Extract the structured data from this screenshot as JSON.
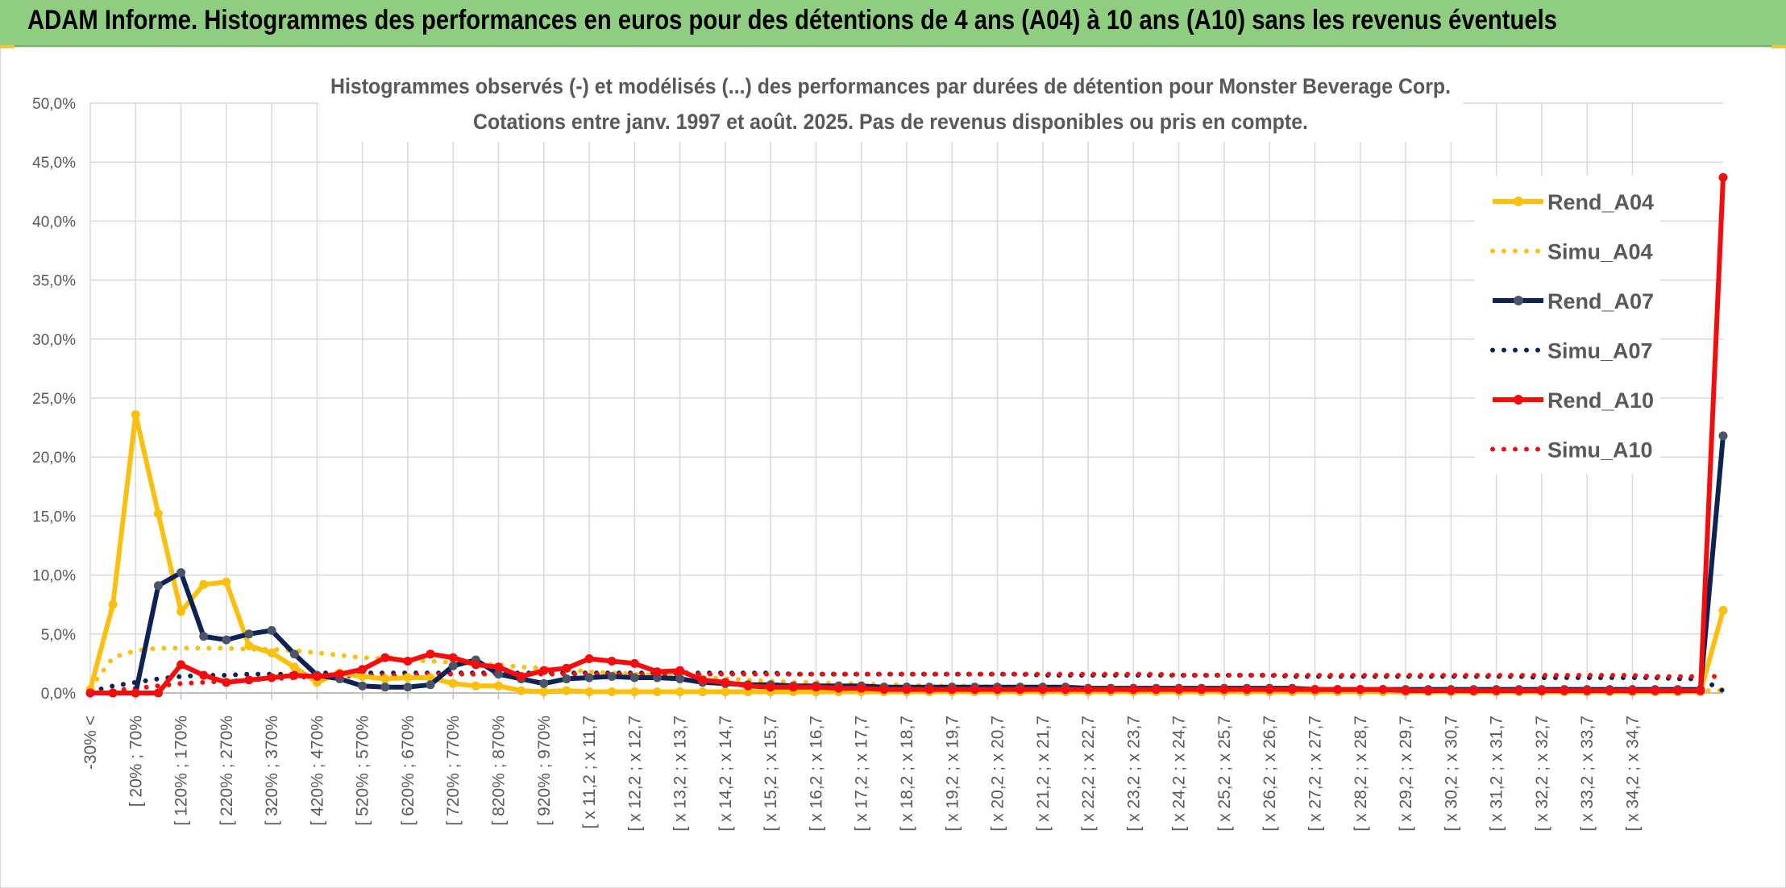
{
  "banner": {
    "title": "ADAM Informe. Histogrammes des performances en euros pour des détentions de 4 ans (A04) à 10 ans (A10) sans les revenus éventuels"
  },
  "colors": {
    "banner_bg": "#8fce80",
    "a04": "#fbbf0e",
    "a07": "#0e2354",
    "a07_marker": "#4a5568",
    "a10": "#f50c0c",
    "grid": "#d9d9d9",
    "axis_text": "#595959"
  },
  "chart_data": {
    "type": "line",
    "title": "Histogrammes observés (-) et modélisés (...) des performances par durées de détention pour Monster Beverage Corp.",
    "subtitle": "Cotations entre janv. 1997 et août. 2025. Pas de revenus disponibles ou pris en compte.",
    "xlabel": "",
    "ylabel": "",
    "ylim": [
      0,
      50
    ],
    "y_tick_labels": [
      "0,0%",
      "5,0%",
      "10,0%",
      "15,0%",
      "20,0%",
      "25,0%",
      "30,0%",
      "35,0%",
      "40,0%",
      "45,0%",
      "50,0%"
    ],
    "grid": true,
    "legend_position": "right",
    "x_tick_labels": [
      "-30% <",
      "[ 20% ; 70%",
      "[ 120% ; 170%",
      "[ 220% ; 270%",
      "[ 320% ; 370%",
      "[ 420% ; 470%",
      "[ 520% ; 570%",
      "[ 620% ; 670%",
      "[ 720% ; 770%",
      "[ 820% ; 870%",
      "[ 920% ; 970%",
      "[ x 11,2 ; x 11,7",
      "[ x 12,2 ; x 12,7",
      "[ x 13,2 ; x 13,7",
      "[ x 14,2 ; x 14,7",
      "[ x 15,2 ; x 15,7",
      "[ x 16,2 ; x 16,7",
      "[ x 17,2 ; x 17,7",
      "[ x 18,2 ; x 18,7",
      "[ x 19,2 ; x 19,7",
      "[ x 20,2 ; x 20,7",
      "[ x 21,2 ; x 21,7",
      "[ x 22,2 ; x 22,7",
      "[ x 23,2 ; x 23,7",
      "[ x 24,2 ; x 24,7",
      "[ x 25,2 ; x 25,7",
      "[ x 26,2 ; x 26,7",
      "[ x 27,2 ; x 27,7",
      "[ x 28,2 ; x 28,7",
      "[ x 29,2 ; x 29,7",
      "[ x 30,2 ; x 30,7",
      "[ x 31,2 ; x 31,7",
      "[ x 32,2 ; x 32,7",
      "[ x 33,2 ; x 33,7",
      "[ x 34,2 ; x 34,7"
    ],
    "series": [
      {
        "name": "Rend_A04",
        "style": "solid",
        "color": "#fbbf0e",
        "marker": "#fbbf0e",
        "values": [
          0.3,
          7.5,
          23.6,
          15.2,
          6.9,
          9.2,
          9.4,
          4.0,
          3.4,
          2.2,
          0.9,
          1.7,
          1.4,
          1.2,
          1.3,
          1.3,
          0.8,
          0.6,
          0.6,
          0.2,
          0.1,
          0.2,
          0.1,
          0.1,
          0.1,
          0.1,
          0.1,
          0.1,
          0.1,
          0.1,
          0.1,
          0.1,
          0.1,
          0.1,
          0.1,
          0.1,
          0.1,
          0.1,
          0.1,
          0.1,
          0.1,
          0.1,
          0.1,
          0.1,
          0.1,
          0.1,
          0.1,
          0.1,
          0.1,
          0.1,
          0.1,
          0.1,
          0.1,
          0.1,
          0.1,
          0.1,
          0.1,
          0.1,
          0.1,
          0.1,
          0.1,
          0.1,
          0.1,
          0.1,
          0.1,
          0.1,
          0.1,
          0.1,
          0.1,
          0.1,
          0.1,
          0.1,
          7.0
        ]
      },
      {
        "name": "Simu_A04",
        "style": "dotted",
        "color": "#fbbf0e",
        "values": [
          0.4,
          3.0,
          3.6,
          3.8,
          3.8,
          3.8,
          3.8,
          3.7,
          3.7,
          3.6,
          3.4,
          3.2,
          3.0,
          2.9,
          2.8,
          2.7,
          2.6,
          2.5,
          2.4,
          2.2,
          2.1,
          2.0,
          1.8,
          1.7,
          1.6,
          1.5,
          1.4,
          1.3,
          1.2,
          1.1,
          1.0,
          0.9,
          0.9,
          0.8,
          0.8,
          0.7,
          0.7,
          0.6,
          0.6,
          0.6,
          0.5,
          0.5,
          0.5,
          0.5,
          0.4,
          0.4,
          0.4,
          0.4,
          0.4,
          0.3,
          0.3,
          0.3,
          0.3,
          0.3,
          0.3,
          0.3,
          0.3,
          0.3,
          0.2,
          0.2,
          0.2,
          0.2,
          0.2,
          0.2,
          0.2,
          0.2,
          0.2,
          0.2,
          0.2,
          0.2,
          0.2,
          0.2,
          0.2
        ]
      },
      {
        "name": "Rend_A07",
        "style": "solid",
        "color": "#0e2354",
        "marker": "#4a5568",
        "values": [
          0.0,
          0.0,
          0.0,
          9.1,
          10.2,
          4.8,
          4.5,
          5.0,
          5.3,
          3.3,
          1.5,
          1.2,
          0.6,
          0.5,
          0.5,
          0.7,
          2.3,
          2.8,
          1.6,
          1.2,
          0.8,
          1.2,
          1.3,
          1.4,
          1.3,
          1.3,
          1.2,
          0.9,
          0.8,
          0.7,
          0.7,
          0.6,
          0.6,
          0.6,
          0.6,
          0.5,
          0.5,
          0.5,
          0.5,
          0.5,
          0.5,
          0.5,
          0.5,
          0.5,
          0.4,
          0.4,
          0.4,
          0.4,
          0.4,
          0.4,
          0.4,
          0.4,
          0.4,
          0.4,
          0.3,
          0.3,
          0.3,
          0.3,
          0.3,
          0.3,
          0.3,
          0.3,
          0.3,
          0.3,
          0.3,
          0.3,
          0.3,
          0.3,
          0.3,
          0.3,
          0.3,
          0.3,
          21.8
        ]
      },
      {
        "name": "Simu_A07",
        "style": "dotted",
        "color": "#0e2354",
        "values": [
          0.1,
          0.6,
          0.9,
          1.2,
          1.4,
          1.5,
          1.5,
          1.6,
          1.6,
          1.6,
          1.7,
          1.7,
          1.7,
          1.7,
          1.7,
          1.7,
          1.7,
          1.7,
          1.7,
          1.7,
          1.7,
          1.7,
          1.7,
          1.7,
          1.7,
          1.7,
          1.7,
          1.7,
          1.7,
          1.7,
          1.7,
          1.6,
          1.6,
          1.6,
          1.6,
          1.6,
          1.6,
          1.6,
          1.6,
          1.6,
          1.6,
          1.6,
          1.5,
          1.5,
          1.5,
          1.5,
          1.5,
          1.5,
          1.5,
          1.5,
          1.5,
          1.5,
          1.5,
          1.4,
          1.4,
          1.4,
          1.4,
          1.4,
          1.4,
          1.4,
          1.4,
          1.4,
          1.4,
          1.4,
          1.3,
          1.3,
          1.3,
          1.3,
          1.3,
          1.3,
          1.2,
          1.2,
          0.2
        ]
      },
      {
        "name": "Rend_A10",
        "style": "solid",
        "color": "#f50c0c",
        "marker": "#f50c0c",
        "values": [
          0.0,
          0.0,
          0.0,
          0.0,
          2.4,
          1.5,
          0.9,
          1.1,
          1.3,
          1.5,
          1.4,
          1.6,
          2.0,
          3.0,
          2.7,
          3.3,
          3.0,
          2.4,
          2.2,
          1.4,
          1.9,
          2.1,
          2.9,
          2.7,
          2.5,
          1.8,
          1.9,
          1.1,
          0.9,
          0.6,
          0.5,
          0.5,
          0.5,
          0.4,
          0.4,
          0.3,
          0.3,
          0.3,
          0.3,
          0.3,
          0.3,
          0.3,
          0.3,
          0.3,
          0.3,
          0.3,
          0.3,
          0.3,
          0.3,
          0.3,
          0.3,
          0.3,
          0.3,
          0.3,
          0.3,
          0.3,
          0.3,
          0.3,
          0.2,
          0.2,
          0.2,
          0.2,
          0.2,
          0.2,
          0.2,
          0.2,
          0.2,
          0.2,
          0.2,
          0.2,
          0.2,
          0.2,
          43.7
        ]
      },
      {
        "name": "Simu_A10",
        "style": "dotted",
        "color": "#f50c0c",
        "values": [
          0.0,
          0.2,
          0.4,
          0.6,
          0.8,
          0.9,
          1.0,
          1.1,
          1.2,
          1.3,
          1.4,
          1.4,
          1.5,
          1.5,
          1.5,
          1.6,
          1.6,
          1.6,
          1.6,
          1.6,
          1.6,
          1.6,
          1.6,
          1.6,
          1.6,
          1.6,
          1.6,
          1.6,
          1.6,
          1.6,
          1.6,
          1.6,
          1.6,
          1.6,
          1.6,
          1.6,
          1.6,
          1.6,
          1.6,
          1.6,
          1.6,
          1.6,
          1.6,
          1.6,
          1.6,
          1.6,
          1.6,
          1.6,
          1.5,
          1.5,
          1.5,
          1.5,
          1.5,
          1.5,
          1.5,
          1.5,
          1.5,
          1.5,
          1.5,
          1.5,
          1.5,
          1.5,
          1.5,
          1.5,
          1.5,
          1.5,
          1.5,
          1.5,
          1.5,
          1.4,
          1.4,
          1.4,
          1.4
        ]
      }
    ]
  }
}
